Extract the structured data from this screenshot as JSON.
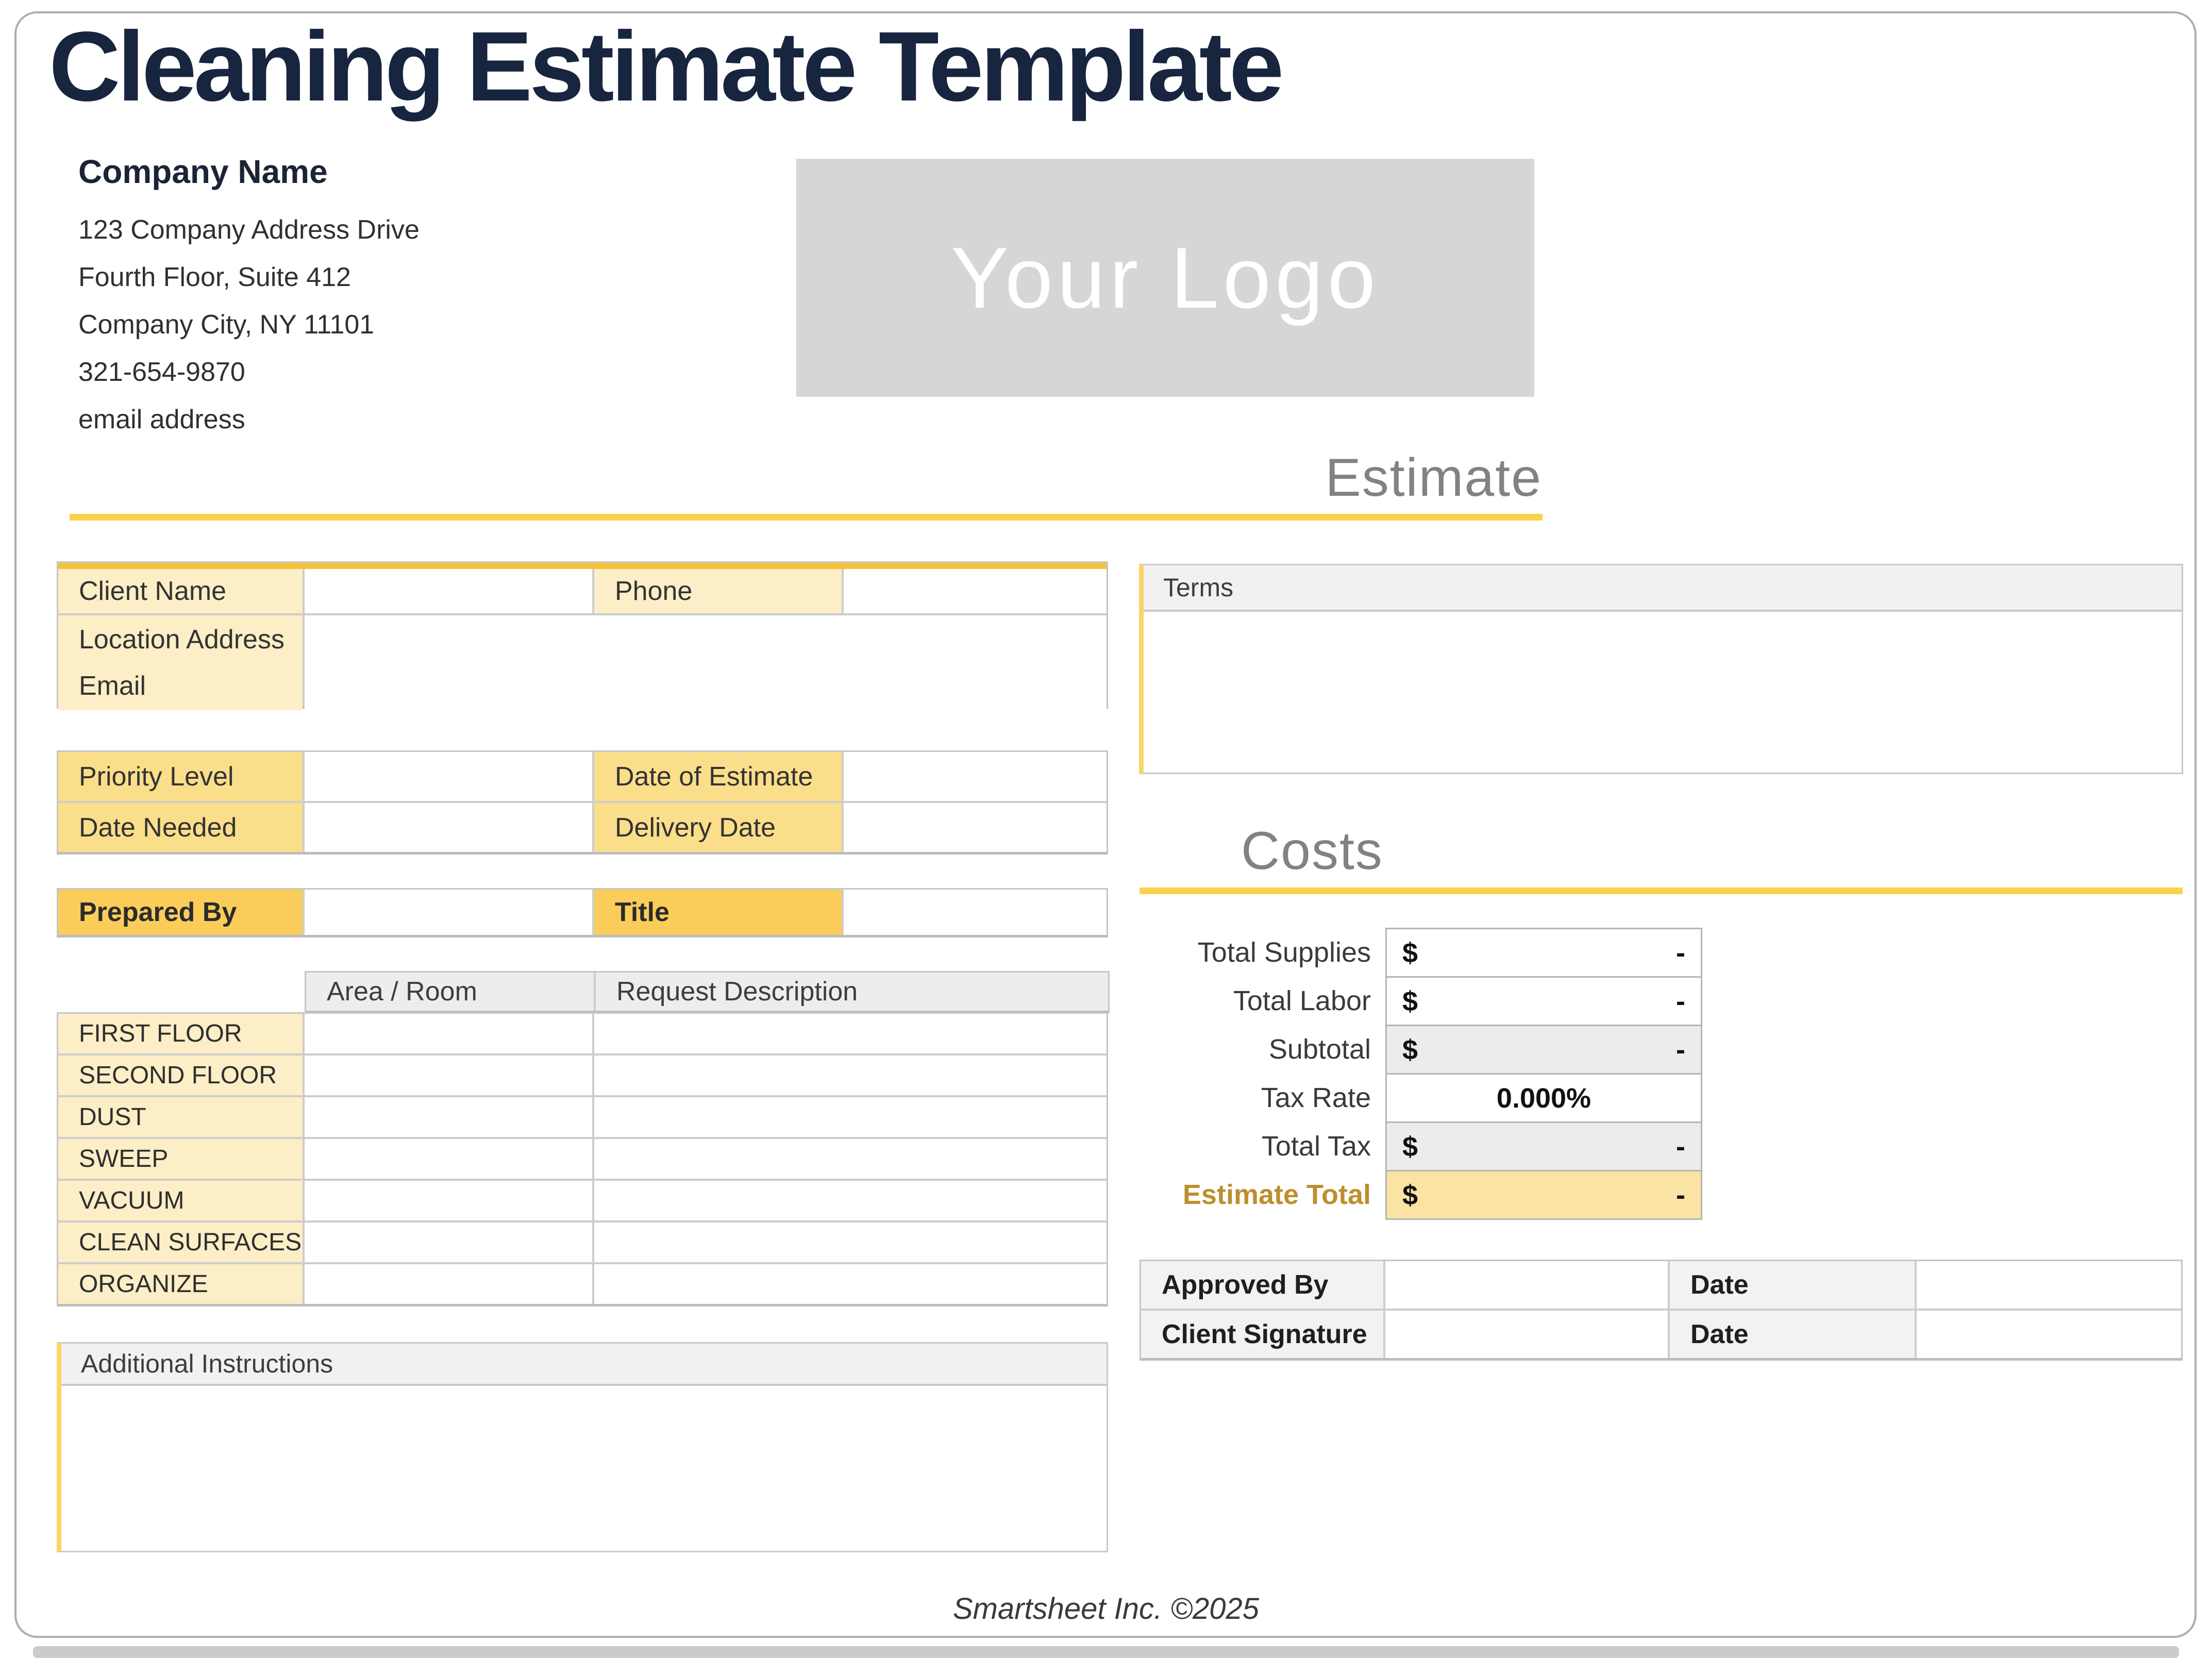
{
  "title": "Cleaning Estimate Template",
  "company": {
    "name": "Company Name",
    "line1": "123 Company Address Drive",
    "line2": "Fourth Floor, Suite 412",
    "line3": "Company City, NY  11101",
    "line4": "321-654-9870",
    "line5": "email address"
  },
  "logo_text": "Your Logo",
  "estimate_heading": "Estimate",
  "client_info": {
    "client_name_label": "Client Name",
    "phone_label": "Phone",
    "location_label": "Location Address",
    "email_label": "Email"
  },
  "schedule": {
    "priority_label": "Priority Level",
    "date_of_estimate_label": "Date of Estimate",
    "date_needed_label": "Date Needed",
    "delivery_date_label": "Delivery Date"
  },
  "prepared": {
    "prepared_by_label": "Prepared By",
    "title_label": "Title"
  },
  "tasks": {
    "area_header": "Area / Room",
    "desc_header": "Request Description",
    "rows": [
      "FIRST FLOOR",
      "SECOND FLOOR",
      "DUST",
      "SWEEP",
      "VACUUM",
      "CLEAN SURFACES",
      "ORGANIZE"
    ]
  },
  "notes_label": "Additional Instructions",
  "terms_label": "Terms",
  "costs": {
    "heading": "Costs",
    "rows": [
      {
        "label": "Total Supplies",
        "currency": "$",
        "value": "-"
      },
      {
        "label": "Total Labor",
        "currency": "$",
        "value": "-"
      },
      {
        "label": "Subtotal",
        "currency": "$",
        "value": "-"
      },
      {
        "label": "Tax Rate",
        "value": "0.000%"
      },
      {
        "label": "Total Tax",
        "currency": "$",
        "value": "-"
      },
      {
        "label": "Estimate Total",
        "currency": "$",
        "value": "-"
      }
    ]
  },
  "signoff": {
    "approved_by_label": "Approved By",
    "approved_date_label": "Date",
    "client_signature_label": "Client Signature",
    "signature_date_label": "Date"
  },
  "footer": "Smartsheet Inc. ©2025",
  "colors": {
    "title_navy": "#18253f",
    "heading_gray": "#828282",
    "accent_gold_bar": "#f5c13c",
    "section_rule_yellow": "#fbd14b",
    "label_light_yellow": "#fceec6",
    "label_medium_yellow": "#fbde8a",
    "label_dark_yellow": "#facd5a",
    "estimate_total_yellow": "#fbe3a3",
    "estimate_total_text": "#be8e2e",
    "panel_edge_yellow": "#fbd566",
    "logo_gray": "#d6d6d6"
  }
}
